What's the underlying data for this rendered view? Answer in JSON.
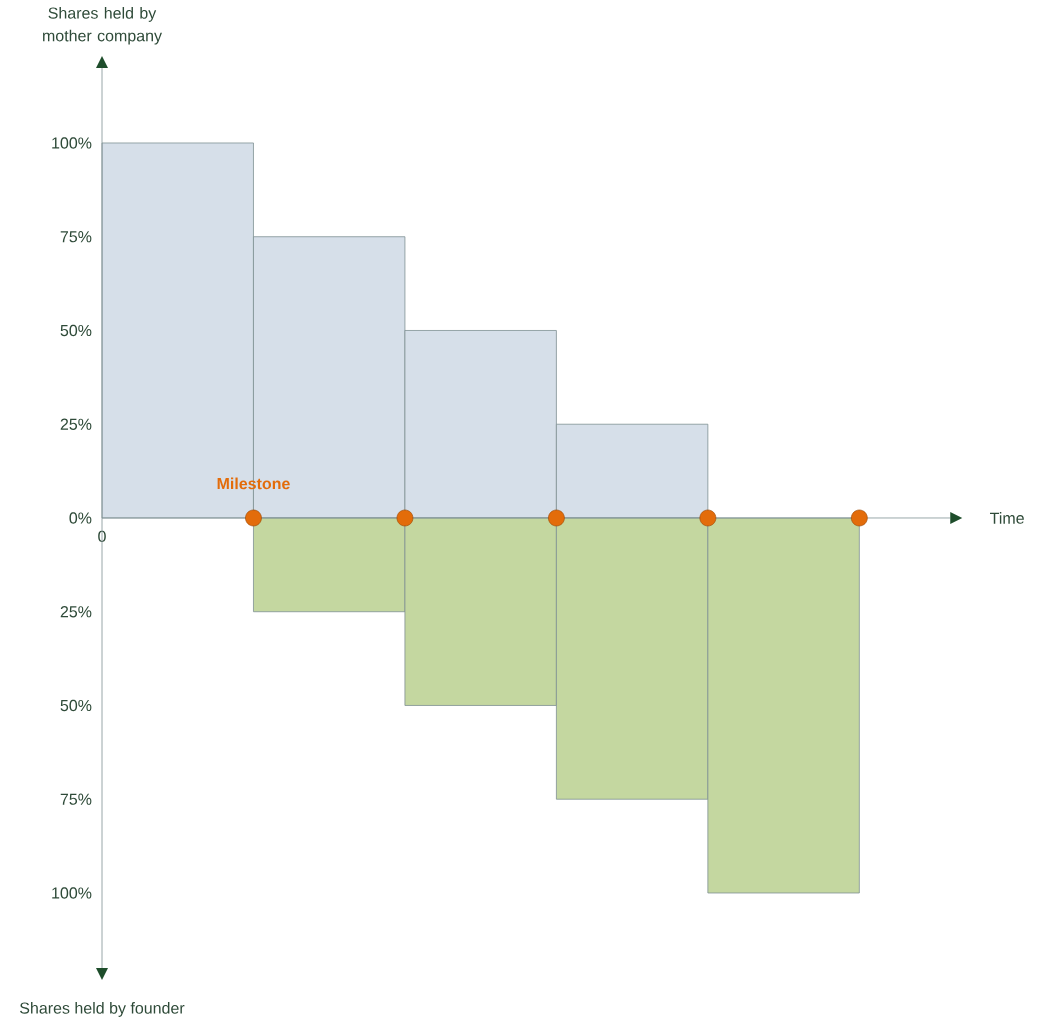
{
  "chart_data": {
    "type": "bar",
    "stacked": true,
    "ylabel": "Shares held by mother company",
    "xlabel": "Time",
    "categories": [
      null,
      null,
      null,
      null,
      null
    ],
    "ylim": [
      -120,
      120
    ],
    "yticks": [
      {
        "value": -100,
        "label": "100%"
      },
      {
        "value": -75,
        "label": "75%"
      },
      {
        "value": -50,
        "label": "50%"
      },
      {
        "value": -25,
        "label": "25%"
      },
      {
        "value": 0,
        "label": "0%"
      },
      {
        "value": 25,
        "label": "25%"
      },
      {
        "value": 50,
        "label": "50%"
      },
      {
        "value": 75,
        "label": "75%"
      },
      {
        "value": 100,
        "label": "100%"
      }
    ],
    "series": [
      {
        "color": "#d6dfe9",
        "values": [
          100,
          75,
          50,
          25,
          null
        ]
      },
      {
        "color": "#c4d7a0",
        "values": [
          null,
          -25,
          -50,
          -75,
          -100
        ]
      }
    ],
    "annotations": [
      "Milestone",
      "Shares held by founder",
      "0"
    ]
  }
}
